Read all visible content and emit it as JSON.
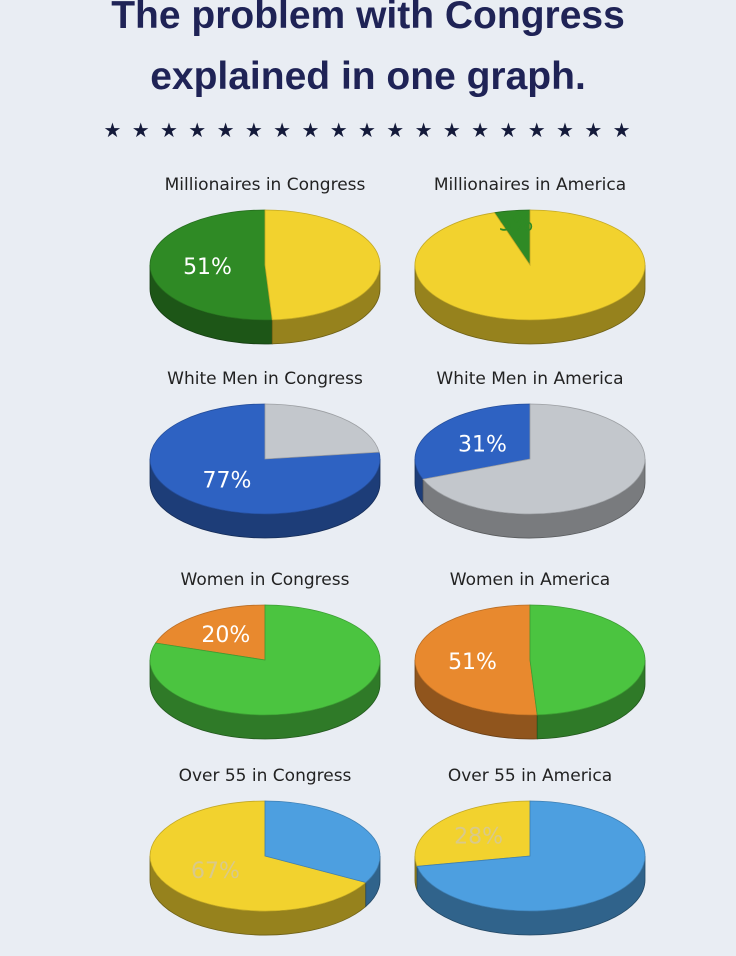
{
  "title": {
    "line1": "The problem with Congress",
    "line2": "explained in one graph."
  },
  "stars": "★ ★ ★ ★ ★ ★ ★ ★ ★ ★ ★ ★ ★ ★ ★ ★ ★ ★ ★",
  "chart_data": [
    {
      "type": "pie",
      "title": "Millionaires in Congress",
      "slices": [
        {
          "value": 51,
          "label": "51%",
          "color": "#2f8a25"
        },
        {
          "value": 49,
          "label": "",
          "color": "#f2d22e"
        }
      ],
      "label_color": "#ffffff"
    },
    {
      "type": "pie",
      "title": "Millionaires in America",
      "slices": [
        {
          "value": 5,
          "label": "5%",
          "color": "#2f8a25"
        },
        {
          "value": 95,
          "label": "",
          "color": "#f2d22e"
        }
      ],
      "label_color": "#2f8a25"
    },
    {
      "type": "pie",
      "title": "White Men in Congress",
      "slices": [
        {
          "value": 77,
          "label": "77%",
          "color": "#2e62c2"
        },
        {
          "value": 23,
          "label": "",
          "color": "#c3c7cc"
        }
      ],
      "label_color": "#ffffff"
    },
    {
      "type": "pie",
      "title": "White Men in America",
      "slices": [
        {
          "value": 31,
          "label": "31%",
          "color": "#2e62c2"
        },
        {
          "value": 69,
          "label": "",
          "color": "#c3c7cc"
        }
      ],
      "label_color": "#ffffff"
    },
    {
      "type": "pie",
      "title": "Women in Congress",
      "slices": [
        {
          "value": 20,
          "label": "20%",
          "color": "#e8892e"
        },
        {
          "value": 80,
          "label": "",
          "color": "#4bc440"
        }
      ],
      "label_color": "#ffffff"
    },
    {
      "type": "pie",
      "title": "Women in America",
      "slices": [
        {
          "value": 51,
          "label": "51%",
          "color": "#e8892e"
        },
        {
          "value": 49,
          "label": "",
          "color": "#4bc440"
        }
      ],
      "label_color": "#ffffff"
    },
    {
      "type": "pie",
      "title": "Over 55 in Congress",
      "slices": [
        {
          "value": 67,
          "label": "67%",
          "color": "#f2d22e"
        },
        {
          "value": 33,
          "label": "",
          "color": "#4d9fe0"
        }
      ],
      "label_color": "#d9c98a"
    },
    {
      "type": "pie",
      "title": "Over 55 in America",
      "slices": [
        {
          "value": 28,
          "label": "28%",
          "color": "#f2d22e"
        },
        {
          "value": 72,
          "label": "",
          "color": "#4d9fe0"
        }
      ],
      "label_color": "#d9c98a"
    }
  ]
}
